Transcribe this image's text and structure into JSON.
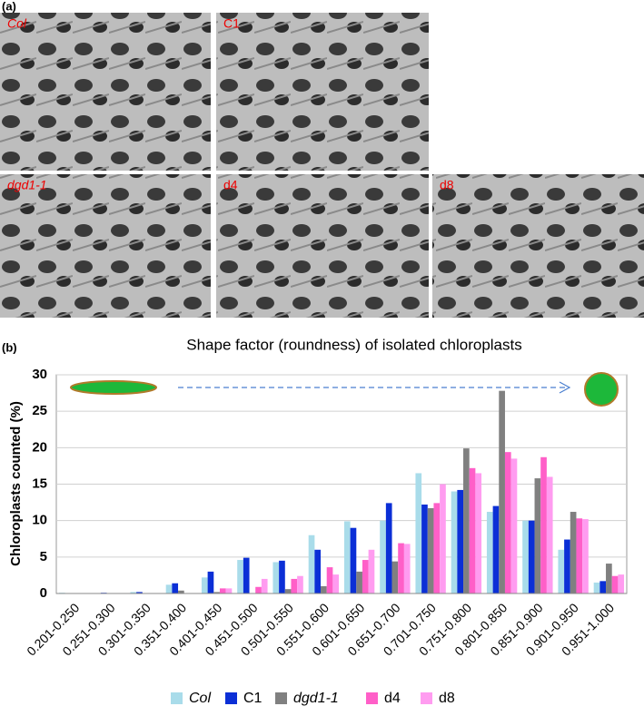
{
  "figure": {
    "panel_a_label": "(a)",
    "panel_b_label": "(b)",
    "images": [
      "Col",
      "C1",
      "dgd1-1",
      "d4",
      "d8"
    ]
  },
  "chart_data": {
    "type": "bar",
    "title": "Shape factor (roundness) of isolated chloroplasts",
    "y_label": "Chloroplasts counted (%)",
    "categories": [
      "0.201-0.250",
      "0.251-0.300",
      "0.301-0.350",
      "0.351-0.400",
      "0.401-0.450",
      "0.451-0.500",
      "0.501-0.550",
      "0.551-0.600",
      "0.601-0.650",
      "0.651-0.700",
      "0.701-0.750",
      "0.751-0.800",
      "0.801-0.850",
      "0.851-0.900",
      "0.901-0.950",
      "0.951-1.000"
    ],
    "series": [
      {
        "name": "Col",
        "color": "#a9dcea",
        "values": [
          0.1,
          0,
          0.2,
          1.2,
          2.2,
          4.6,
          4.3,
          8.0,
          9.9,
          10.0,
          16.5,
          14.0,
          11.2,
          10.0,
          6.0,
          1.5
        ]
      },
      {
        "name": "C1",
        "color": "#0b2fd6",
        "values": [
          0,
          0.1,
          0.2,
          1.4,
          3.0,
          4.9,
          4.5,
          6.0,
          9.0,
          12.4,
          12.2,
          14.2,
          12.0,
          10.0,
          7.4,
          1.7
        ]
      },
      {
        "name": "dgd1-1",
        "color": "#808080",
        "values": [
          0,
          0,
          0,
          0.4,
          0.2,
          0,
          0.6,
          1.0,
          3.0,
          4.4,
          11.7,
          19.9,
          27.8,
          15.8,
          11.2,
          4.1
        ]
      },
      {
        "name": "d4",
        "color": "#ff5fc8",
        "values": [
          0,
          0,
          0,
          0,
          0.7,
          0.9,
          2.0,
          3.6,
          4.6,
          6.9,
          12.4,
          17.2,
          19.4,
          18.7,
          10.3,
          2.4
        ]
      },
      {
        "name": "d8",
        "color": "#ff9cf0",
        "values": [
          0,
          0,
          0,
          0,
          0.7,
          2.0,
          2.4,
          2.6,
          6.0,
          6.8,
          15.0,
          16.5,
          18.5,
          16.0,
          10.2,
          2.6
        ]
      }
    ],
    "ylim": [
      0,
      30
    ],
    "yticks": [
      0,
      5,
      10,
      15,
      20,
      25,
      30
    ],
    "grid": true,
    "legend": "bottom"
  }
}
